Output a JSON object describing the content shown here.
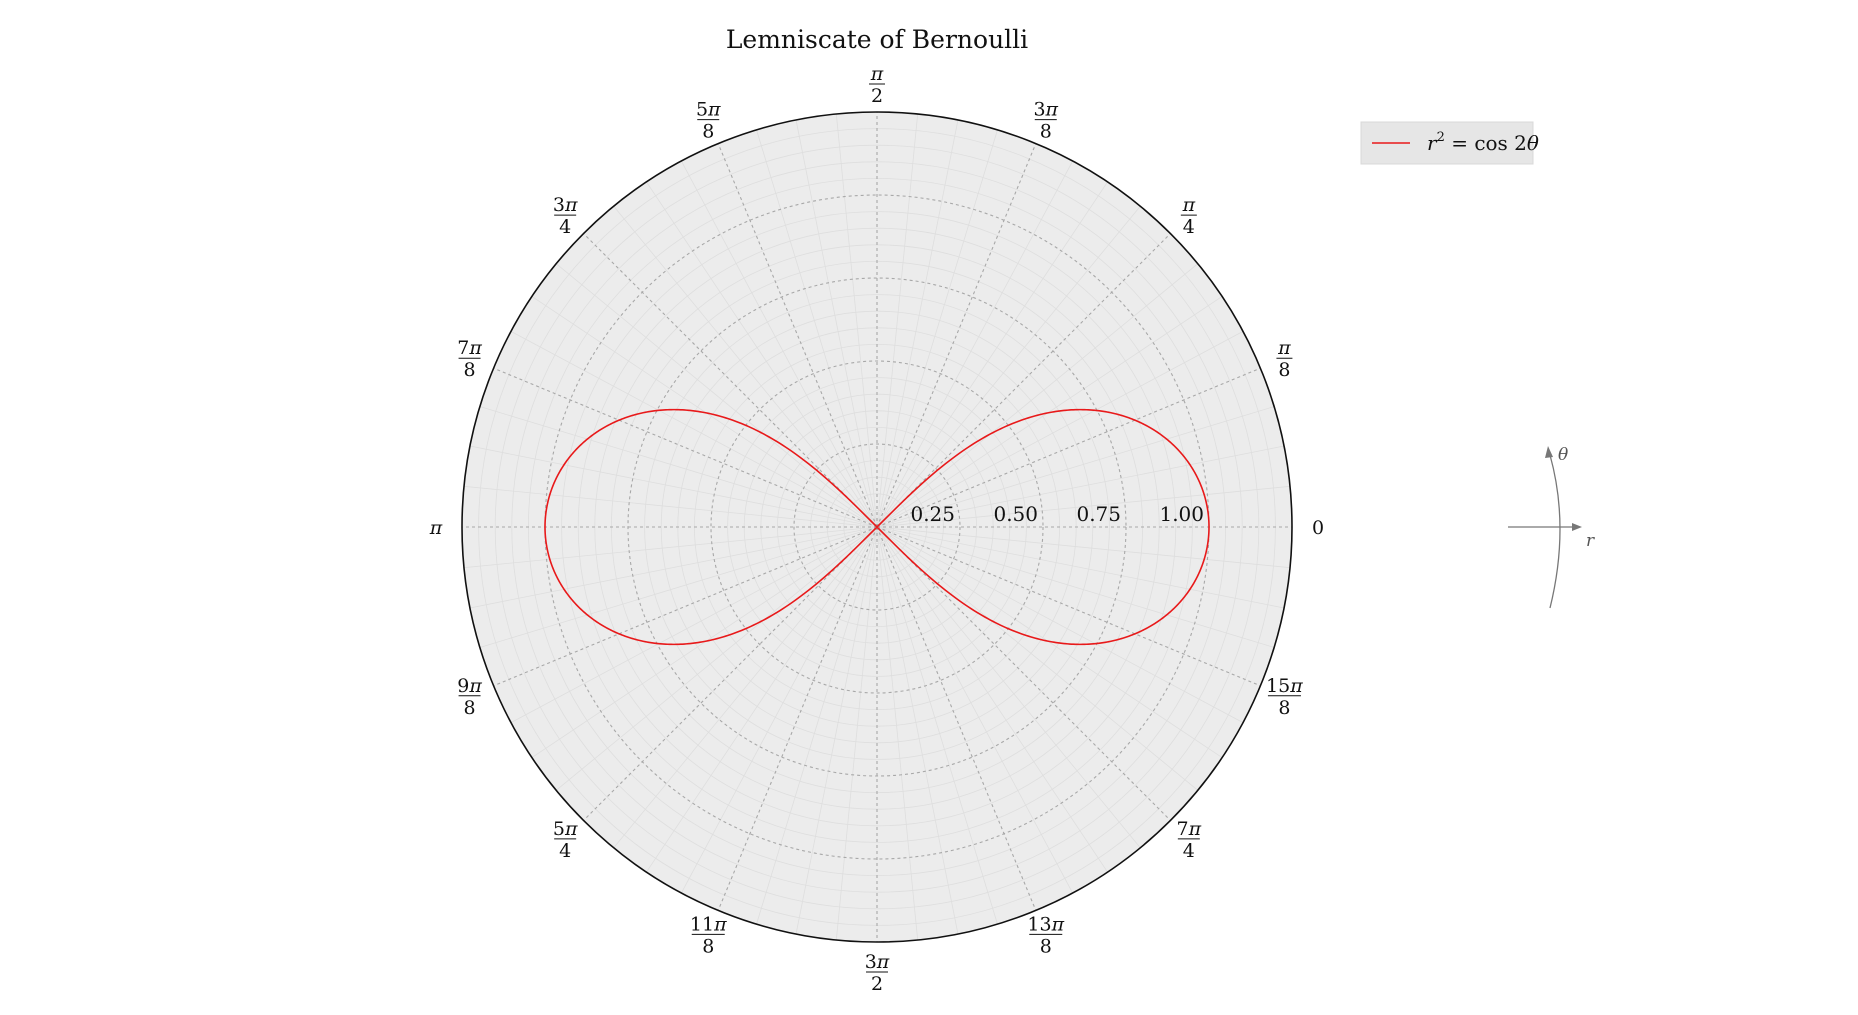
{
  "chart_data": {
    "type": "line",
    "projection": "polar",
    "title": "Lemniscate of Bernoulli",
    "equation": "r² = cos 2θ",
    "rlim": [
      0,
      1.25
    ],
    "r_ticks": [
      0.25,
      0.5,
      0.75,
      1.0
    ],
    "r_tick_labels": [
      "0.25",
      "0.50",
      "0.75",
      "1.00"
    ],
    "theta_ticks": [
      {
        "angle_deg": 0,
        "label": "0"
      },
      {
        "angle_deg": 22.5,
        "num": "π",
        "den": "8"
      },
      {
        "angle_deg": 45,
        "num": "π",
        "den": "4"
      },
      {
        "angle_deg": 67.5,
        "num": "3π",
        "den": "8"
      },
      {
        "angle_deg": 90,
        "num": "π",
        "den": "2"
      },
      {
        "angle_deg": 112.5,
        "num": "5π",
        "den": "8"
      },
      {
        "angle_deg": 135,
        "num": "3π",
        "den": "4"
      },
      {
        "angle_deg": 157.5,
        "num": "7π",
        "den": "8"
      },
      {
        "angle_deg": 180,
        "label": "π"
      },
      {
        "angle_deg": 202.5,
        "num": "9π",
        "den": "8"
      },
      {
        "angle_deg": 225,
        "num": "5π",
        "den": "4"
      },
      {
        "angle_deg": 247.5,
        "num": "11π",
        "den": "8"
      },
      {
        "angle_deg": 270,
        "num": "3π",
        "den": "2"
      },
      {
        "angle_deg": 292.5,
        "num": "13π",
        "den": "8"
      },
      {
        "angle_deg": 315,
        "num": "7π",
        "den": "4"
      },
      {
        "angle_deg": 337.5,
        "num": "15π",
        "den": "8"
      }
    ],
    "series": [
      {
        "name": "r² = cos 2θ",
        "color": "#e8191a",
        "function": "r = sqrt(cos(2θ)), θ in [-π/4, π/4] ∪ [3π/4, 5π/4]"
      }
    ],
    "grid": true,
    "minor_grid": true,
    "legend": "top-right",
    "face_color": "#ececec"
  },
  "legend": {
    "label_prefix": "r",
    "label_sup": "2",
    "label_rest": " = cos 2",
    "label_var": "θ"
  },
  "axes_indicator": {
    "r_label": "r",
    "theta_label": "θ"
  }
}
